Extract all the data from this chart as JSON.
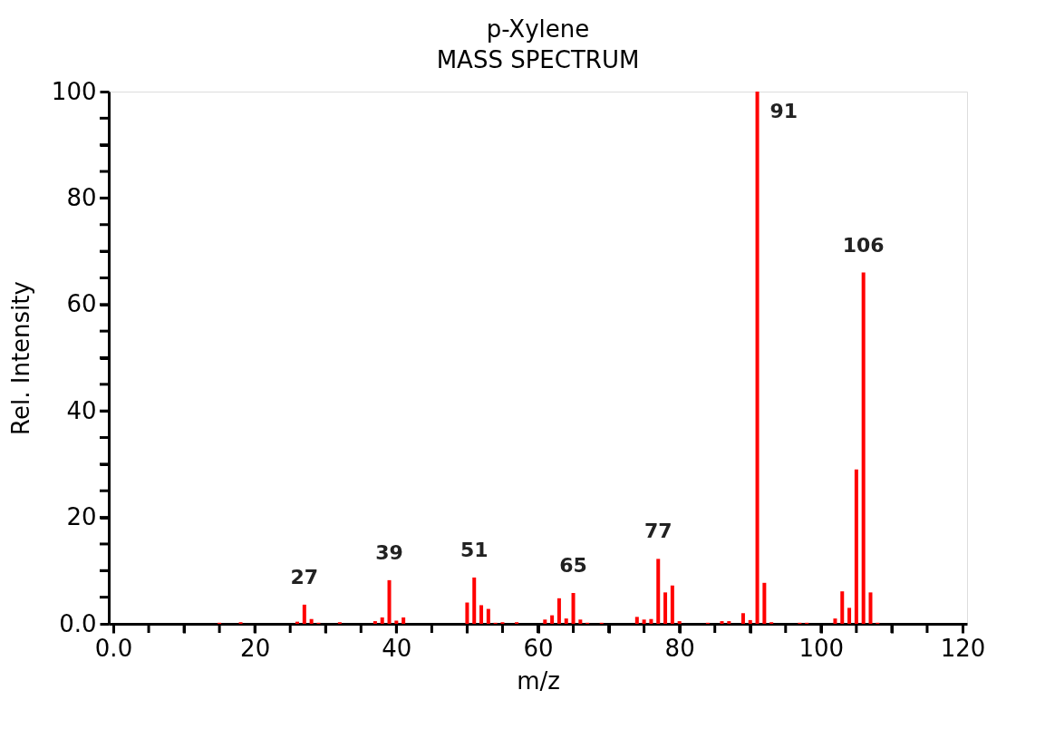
{
  "chart_data": {
    "type": "bar",
    "title": "p-Xylene",
    "subtitle": "MASS SPECTRUM",
    "xlabel": "m/z",
    "ylabel": "Rel. Intensity",
    "x": [
      15,
      18,
      26,
      27,
      28,
      29,
      32,
      37,
      38,
      39,
      40,
      41,
      50,
      51,
      52,
      53,
      54,
      55,
      57,
      61,
      62,
      63,
      64,
      65,
      66,
      67,
      69,
      74,
      75,
      76,
      77,
      78,
      79,
      80,
      84,
      86,
      87,
      89,
      90,
      91,
      92,
      93,
      97,
      98,
      102,
      103,
      104,
      105,
      106,
      107,
      108
    ],
    "series": [
      {
        "color": "#ff0000",
        "values": [
          0.2,
          0.3,
          0.4,
          3.6,
          0.9,
          0.2,
          0.3,
          0.5,
          1.2,
          8.2,
          0.6,
          1.2,
          4.0,
          8.7,
          3.5,
          2.8,
          0.2,
          0.3,
          0.3,
          0.8,
          1.6,
          4.8,
          1.0,
          5.8,
          0.8,
          0.2,
          0.2,
          1.3,
          0.8,
          0.9,
          12.2,
          5.9,
          7.2,
          0.5,
          0.2,
          0.5,
          0.5,
          2.0,
          0.7,
          100,
          7.7,
          0.3,
          0.2,
          0.2,
          1.0,
          6.1,
          3.0,
          29,
          66,
          5.9,
          0.2
        ]
      }
    ],
    "xlim": [
      0,
      120
    ],
    "xticks": [
      {
        "value": 0,
        "label": "0.0"
      },
      {
        "value": 5,
        "label": null
      },
      {
        "value": 10,
        "label": null
      },
      {
        "value": 15,
        "label": null
      },
      20,
      {
        "value": 25,
        "label": null
      },
      {
        "value": 30,
        "label": null
      },
      {
        "value": 35,
        "label": null
      },
      40,
      {
        "value": 45,
        "label": null
      },
      {
        "value": 50,
        "label": null
      },
      {
        "value": 55,
        "label": null
      },
      60,
      {
        "value": 65,
        "label": null
      },
      {
        "value": 70,
        "label": null
      },
      {
        "value": 75,
        "label": null
      },
      80,
      {
        "value": 85,
        "label": null
      },
      {
        "value": 90,
        "label": null
      },
      {
        "value": 95,
        "label": null
      },
      100,
      {
        "value": 105,
        "label": null
      },
      {
        "value": 110,
        "label": null
      },
      {
        "value": 115,
        "label": null
      },
      120
    ],
    "ylim": [
      0,
      100
    ],
    "yticks": [
      {
        "value": 0,
        "label": "0.0"
      },
      {
        "value": 5,
        "label": null
      },
      {
        "value": 10,
        "label": null
      },
      {
        "value": 15,
        "label": null
      },
      20,
      {
        "value": 25,
        "label": null
      },
      {
        "value": 30,
        "label": null
      },
      {
        "value": 35,
        "label": null
      },
      40,
      {
        "value": 45,
        "label": null
      },
      {
        "value": 50,
        "label": null
      },
      {
        "value": 55,
        "label": null
      },
      60,
      {
        "value": 65,
        "label": null
      },
      {
        "value": 70,
        "label": null
      },
      {
        "value": 75,
        "label": null
      },
      80,
      {
        "value": 85,
        "label": null
      },
      {
        "value": 90,
        "label": null
      },
      {
        "value": 95,
        "label": null
      },
      100
    ],
    "grid": false,
    "legend": false,
    "annotations": [
      {
        "text": "27",
        "x": 27,
        "y": 3.6
      },
      {
        "text": "39",
        "x": 39,
        "y": 8.2
      },
      {
        "text": "51",
        "x": 51,
        "y": 8.7
      },
      {
        "text": "65",
        "x": 65,
        "y": 5.8
      },
      {
        "text": "77",
        "x": 77,
        "y": 12.2
      },
      {
        "text": "91",
        "x": 91,
        "y": 100
      },
      {
        "text": "106",
        "x": 106,
        "y": 66
      }
    ]
  }
}
